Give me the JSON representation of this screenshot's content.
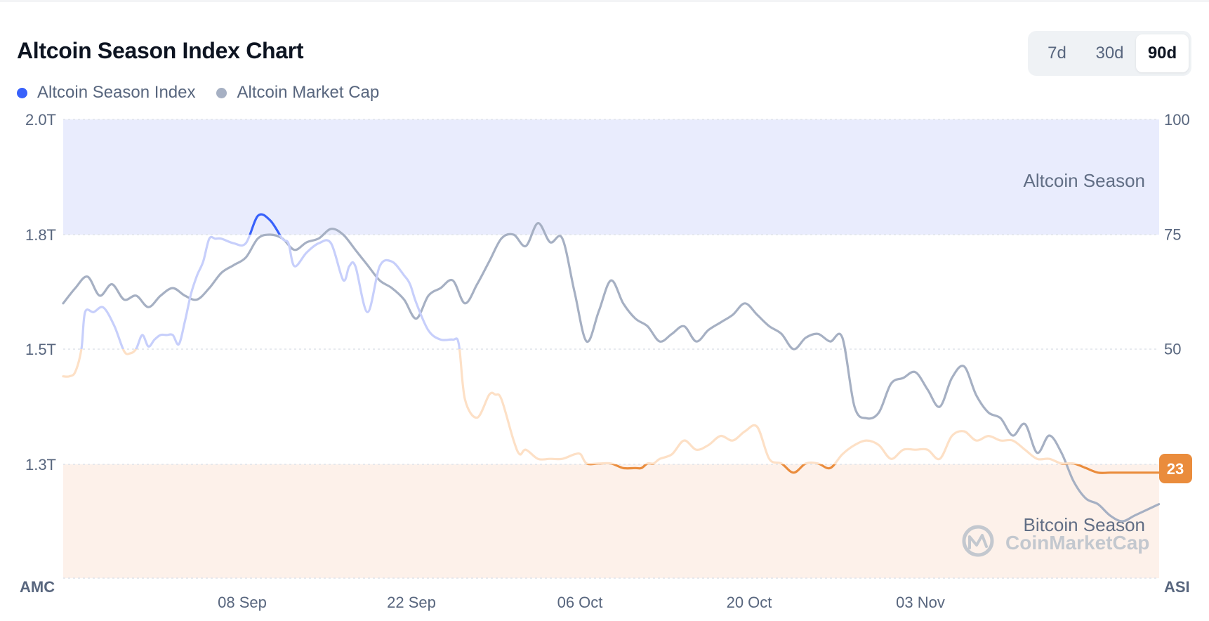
{
  "title": "Altcoin Season Index Chart",
  "legend": [
    {
      "label": "Altcoin Season Index",
      "color": "#3861fb"
    },
    {
      "label": "Altcoin Market Cap",
      "color": "#a6b0c3"
    }
  ],
  "range_tabs": [
    {
      "label": "7d",
      "active": false
    },
    {
      "label": "30d",
      "active": false
    },
    {
      "label": "90d",
      "active": true
    }
  ],
  "chart_data": {
    "type": "line",
    "x_ticks": [
      "08 Sep",
      "22 Sep",
      "06 Oct",
      "20 Oct",
      "03 Nov"
    ],
    "left_axis": {
      "title": "AMC",
      "ticks": [
        "2.0T",
        "1.8T",
        "1.5T",
        "1.3T"
      ],
      "tick_values": [
        2.0,
        1.8,
        1.5,
        1.3
      ],
      "range": [
        1.1,
        2.0
      ]
    },
    "right_axis": {
      "title": "ASI",
      "ticks": [
        "100",
        "75",
        "50"
      ],
      "tick_values": [
        100,
        75,
        50
      ],
      "range": [
        0,
        100
      ]
    },
    "zones": [
      {
        "label": "Altcoin Season",
        "from": 75,
        "to": 100,
        "color": "#e9ecfd"
      },
      {
        "label": "Bitcoin Season",
        "from": 0,
        "to": 25,
        "color": "#fdf1ea"
      }
    ],
    "current_value": "23",
    "watermark": "CoinMarketCap",
    "series": [
      {
        "name": "Altcoin Season Index",
        "axis": "right",
        "colors": {
          "altcoin": "#3861fb",
          "neutral_above": "#c7cffb",
          "neutral_below": "#fde0c6",
          "bitcoin": "#ea8c3c"
        },
        "x": [
          0,
          0.5,
          1,
          1.5,
          1.8,
          2.5,
          3.3,
          4.2,
          5,
          5.5,
          6,
          6.5,
          7,
          7.5,
          8,
          8.5,
          9,
          9.5,
          10,
          10.5,
          11,
          11.5,
          12,
          12.5,
          13,
          14,
          15,
          16,
          17,
          18,
          18.5,
          19,
          20,
          21,
          22,
          23,
          23.5,
          24,
          25,
          26,
          27,
          28,
          28.5,
          29,
          30,
          31,
          32,
          32.5,
          33,
          34,
          35,
          35.5,
          36,
          37,
          37.5,
          38,
          39,
          40,
          41,
          42,
          42.5,
          43,
          44,
          45,
          46,
          47,
          47.5,
          48,
          48.5,
          49,
          50,
          51,
          52,
          53,
          54,
          55,
          56,
          57,
          58,
          59,
          60,
          61,
          62,
          63,
          64,
          65,
          66,
          67,
          68,
          69,
          70,
          71,
          72,
          73,
          74,
          75,
          76,
          77,
          78,
          79,
          80,
          81,
          82,
          83,
          84,
          85,
          86,
          87,
          88,
          89,
          90
        ],
        "y": [
          44,
          44,
          45,
          50,
          58,
          58,
          59,
          55,
          49.5,
          49,
          50,
          53,
          50.5,
          52,
          53,
          53,
          53,
          51,
          56,
          62,
          66,
          69,
          74,
          74,
          74,
          73,
          73,
          79,
          78,
          74,
          73,
          68,
          71,
          73,
          73,
          65,
          68,
          68,
          58,
          68,
          69,
          66,
          64,
          60,
          54,
          52,
          52,
          51,
          39,
          35,
          40,
          40,
          39,
          30,
          27,
          28,
          26,
          26,
          26,
          27,
          27,
          25,
          25,
          25,
          24,
          24,
          24,
          25,
          25,
          26,
          27,
          30,
          28,
          29,
          31,
          30,
          32,
          33,
          26,
          25,
          23,
          25,
          25,
          24,
          27,
          29,
          30,
          29,
          26,
          28,
          28,
          28,
          26,
          31,
          32,
          30,
          31,
          30,
          30,
          28,
          26,
          26,
          25,
          25,
          24,
          23,
          23,
          23,
          23,
          23,
          23
        ]
      },
      {
        "name": "Altcoin Market Cap",
        "axis": "left",
        "color": "#a6b0c3",
        "unit": "T",
        "x": [
          0,
          1,
          2,
          3,
          4,
          5,
          6,
          7,
          8,
          9,
          10,
          11,
          12,
          13,
          14,
          15,
          16,
          17,
          18,
          19,
          20,
          21,
          22,
          23,
          24,
          25,
          26,
          27,
          28,
          29,
          30,
          31,
          32,
          33,
          34,
          35,
          36,
          37,
          38,
          39,
          40,
          41,
          42,
          43,
          44,
          45,
          46,
          47,
          48,
          49,
          50,
          51,
          52,
          53,
          54,
          55,
          56,
          57,
          58,
          59,
          60,
          61,
          62,
          63,
          64,
          65,
          66,
          67,
          68,
          69,
          70,
          71,
          72,
          73,
          74,
          75,
          76,
          77,
          78,
          79,
          80,
          81,
          82,
          83,
          84,
          85,
          86,
          87,
          88,
          89,
          90
        ],
        "y": [
          1.62,
          1.66,
          1.69,
          1.64,
          1.67,
          1.63,
          1.64,
          1.61,
          1.64,
          1.66,
          1.64,
          1.63,
          1.66,
          1.7,
          1.72,
          1.74,
          1.79,
          1.8,
          1.79,
          1.76,
          1.78,
          1.79,
          1.81,
          1.8,
          1.76,
          1.72,
          1.68,
          1.66,
          1.63,
          1.58,
          1.64,
          1.66,
          1.68,
          1.62,
          1.67,
          1.73,
          1.79,
          1.8,
          1.77,
          1.82,
          1.78,
          1.79,
          1.65,
          1.52,
          1.6,
          1.68,
          1.62,
          1.58,
          1.56,
          1.52,
          1.54,
          1.56,
          1.52,
          1.55,
          1.57,
          1.59,
          1.62,
          1.59,
          1.56,
          1.54,
          1.5,
          1.53,
          1.54,
          1.52,
          1.53,
          1.4,
          1.38,
          1.39,
          1.44,
          1.45,
          1.46,
          1.43,
          1.4,
          1.45,
          1.47,
          1.42,
          1.39,
          1.38,
          1.35,
          1.37,
          1.32,
          1.35,
          1.32,
          1.27,
          1.24,
          1.23,
          1.21,
          1.2,
          1.21,
          1.22,
          1.23
        ]
      }
    ]
  }
}
